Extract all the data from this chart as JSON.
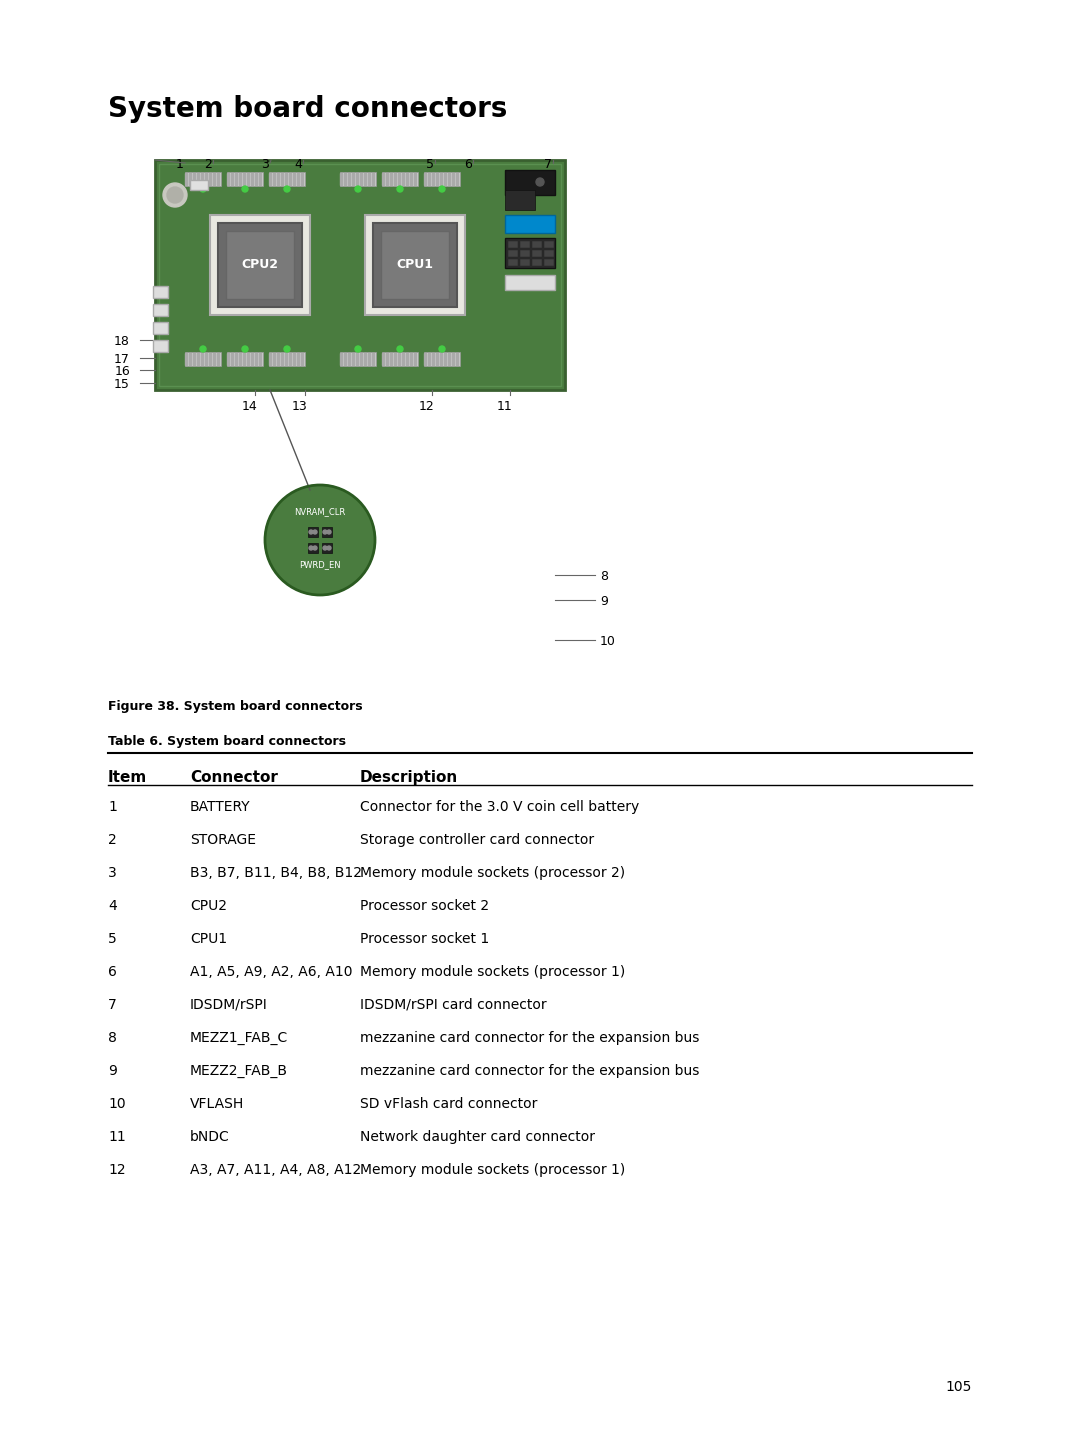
{
  "title": "System board connectors",
  "figure_caption": "Figure 38. System board connectors",
  "table_title": "Table 6. System board connectors",
  "background_color": "#ffffff",
  "page_number": "105",
  "table_headers": [
    "Item",
    "Connector",
    "Description"
  ],
  "table_rows": [
    [
      "1",
      "BATTERY",
      "Connector for the 3.0 V coin cell battery"
    ],
    [
      "2",
      "STORAGE",
      "Storage controller card connector"
    ],
    [
      "3",
      "B3, B7, B11, B4, B8, B12",
      "Memory module sockets (processor 2)"
    ],
    [
      "4",
      "CPU2",
      "Processor socket 2"
    ],
    [
      "5",
      "CPU1",
      "Processor socket 1"
    ],
    [
      "6",
      "A1, A5, A9, A2, A6, A10",
      "Memory module sockets (processor 1)"
    ],
    [
      "7",
      "IDSDM/rSPI",
      "IDSDM/rSPI card connector"
    ],
    [
      "8",
      "MEZZ1_FAB_C",
      "mezzanine card connector for the expansion bus"
    ],
    [
      "9",
      "MEZZ2_FAB_B",
      "mezzanine card connector for the expansion bus"
    ],
    [
      "10",
      "VFLASH",
      "SD vFlash card connector"
    ],
    [
      "11",
      "bNDC",
      "Network daughter card connector"
    ],
    [
      "12",
      "A3, A7, A11, A4, A8, A12",
      "Memory module sockets (processor 1)"
    ]
  ],
  "board_color": "#4a7c3f",
  "board_dark": "#3a6030",
  "cpu_color": "#5a5a5a",
  "cpu_label_color": "#ffffff",
  "mem_slot_color": "#cccccc",
  "mem_slot_stripe": "#888888",
  "connector_blue": "#00aacc",
  "connector_dark": "#222222",
  "nvram_bg": "#4a7c3f",
  "nvram_outline": "#3a6030",
  "label_color": "#000000",
  "line_color": "#555555",
  "header_font_size": 11,
  "body_font_size": 10,
  "title_font_size": 20
}
